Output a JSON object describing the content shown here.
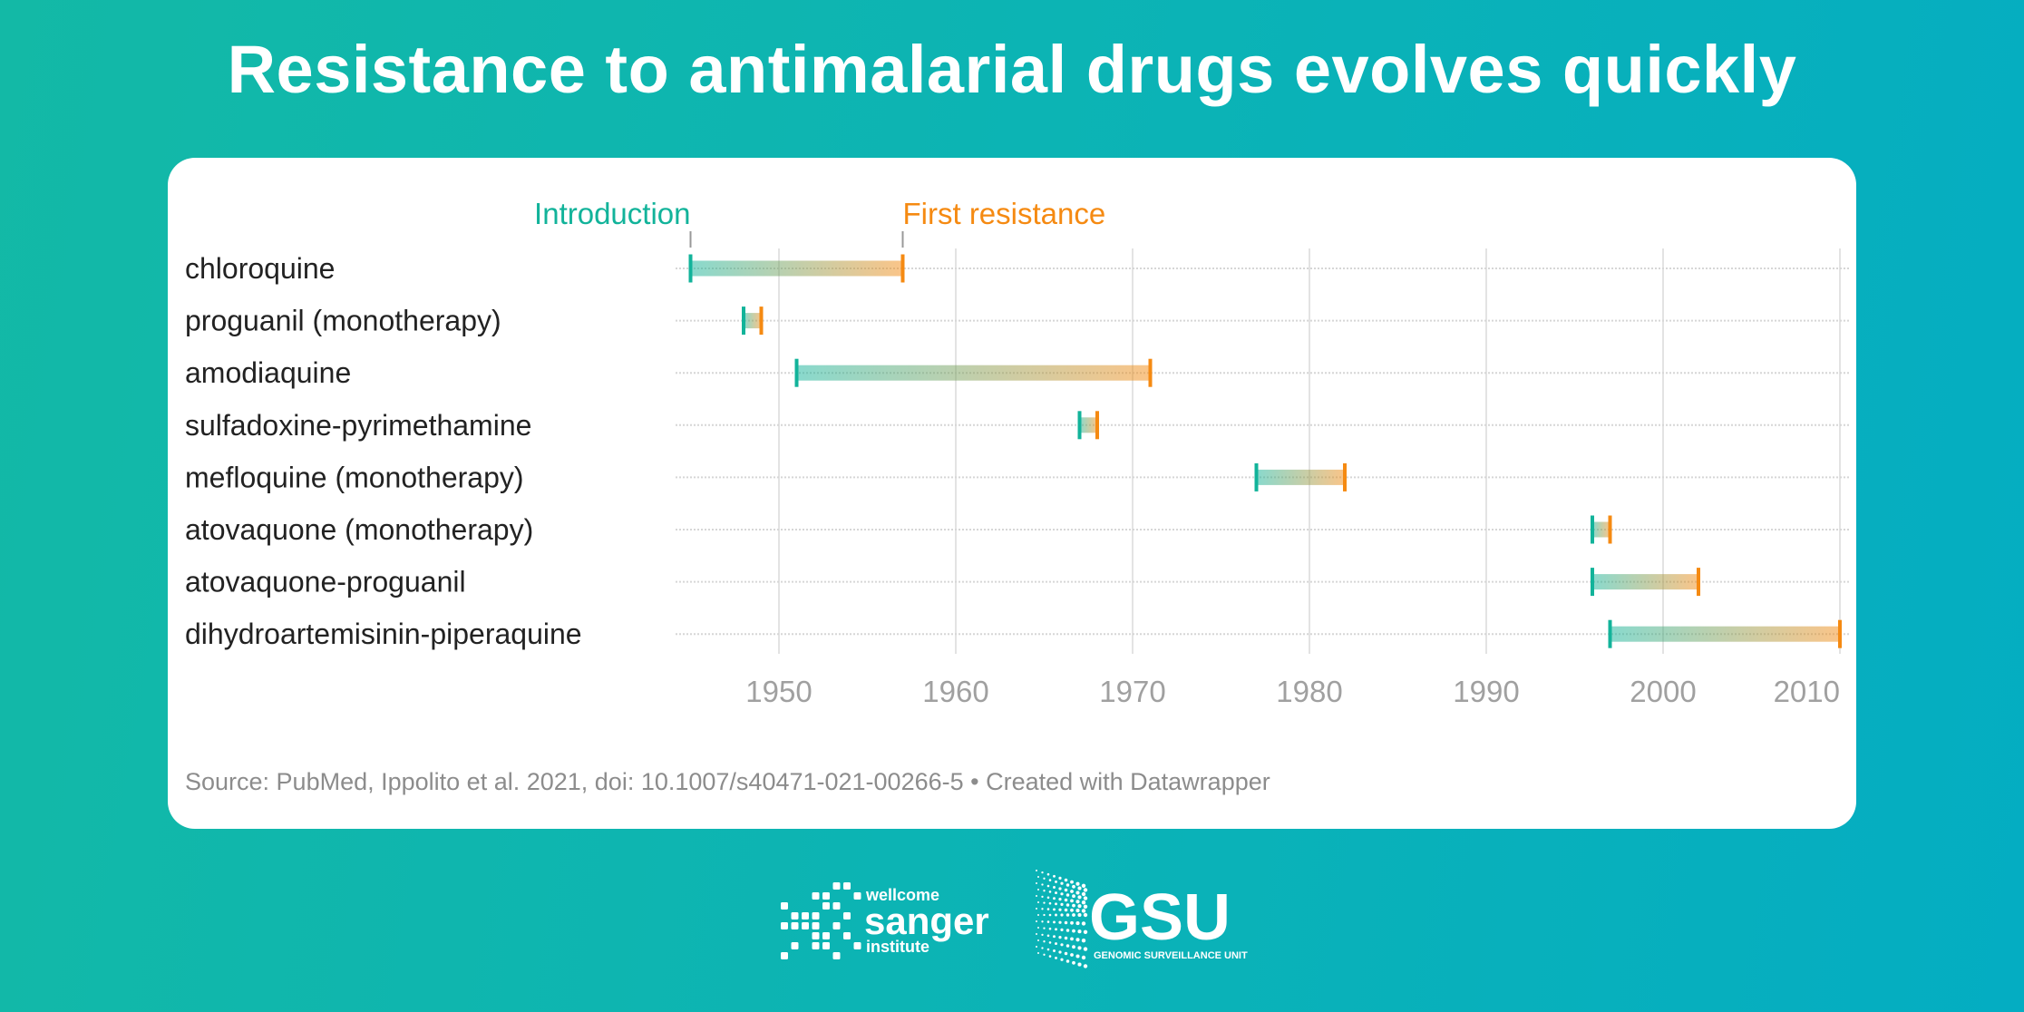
{
  "title": "Resistance to antimalarial drugs evolves quickly",
  "chart_data": {
    "type": "range",
    "categories": [
      "chloroquine",
      "proguanil (monotherapy)",
      "amodiaquine",
      "sulfadoxine-pyrimethamine",
      "mefloquine (monotherapy)",
      "atovaquone (monotherapy)",
      "atovaquone-proguanil",
      "dihydroartemisinin-piperaquine"
    ],
    "series": [
      {
        "name": "Introduction",
        "values": [
          1945,
          1948,
          1951,
          1967,
          1977,
          1996,
          1996,
          1997
        ]
      },
      {
        "name": "First resistance",
        "values": [
          1957,
          1949,
          1971,
          1968,
          1982,
          1997,
          2002,
          2010
        ]
      }
    ],
    "xlim": [
      1945,
      2010
    ],
    "xticks": [
      "1950",
      "1960",
      "1970",
      "1980",
      "1990",
      "2000",
      "2010"
    ],
    "grid": true,
    "legend_placement": "top, annotating first row",
    "colors": {
      "introduction": "#12b39a",
      "first_resistance": "#f58a12"
    }
  },
  "source": "Source: PubMed, Ippolito et al. 2021, doi: 10.1007/s40471-021-00266-5 • Created with Datawrapper",
  "logos": {
    "sanger": [
      "wellcome",
      "sanger",
      "institute"
    ],
    "gsu": [
      "GSU",
      "GENOMIC SURVEILLANCE UNIT"
    ]
  }
}
